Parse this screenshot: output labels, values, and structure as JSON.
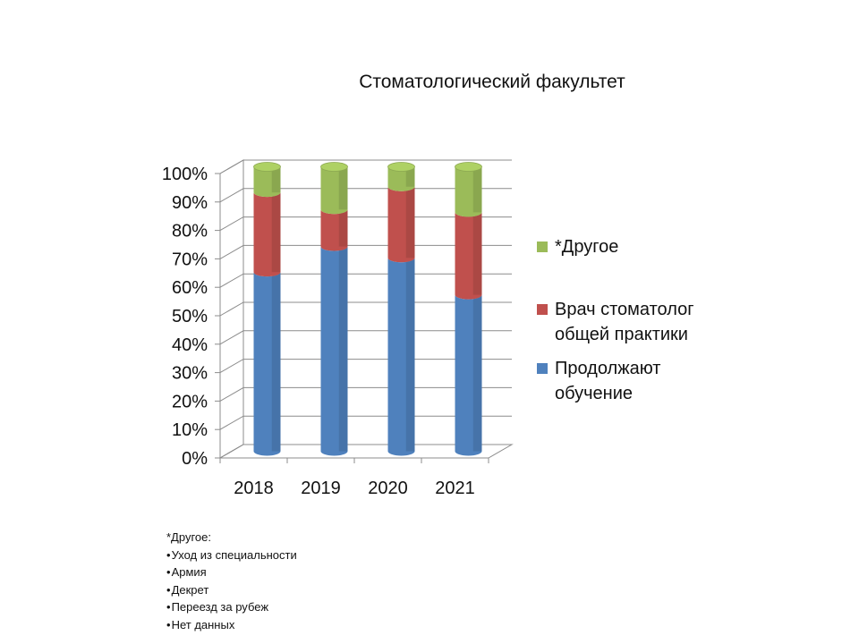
{
  "chart_data": {
    "type": "bar",
    "stacked": true,
    "percent": true,
    "title": "Стоматологический факультет",
    "categories": [
      "2018",
      "2019",
      "2020",
      "2021"
    ],
    "y_ticks": [
      "0%",
      "10%",
      "20%",
      "30%",
      "40%",
      "50%",
      "60%",
      "70%",
      "80%",
      "90%",
      "100%"
    ],
    "ylim": [
      0,
      100
    ],
    "grid": true,
    "legend_position": "right",
    "series": [
      {
        "name": "Продолжают обучение",
        "color": "#4F81BD",
        "values": [
          63,
          72,
          68,
          55
        ]
      },
      {
        "name": "Врач стоматолог общей практики",
        "color": "#C0504D",
        "values": [
          28,
          13,
          25,
          29
        ]
      },
      {
        "name": "*Другое",
        "color": "#9BBB59",
        "values": [
          9,
          15,
          7,
          16
        ]
      }
    ]
  },
  "legend": [
    {
      "label": "*Другое",
      "color": "#9BBB59"
    },
    {
      "label": "Врач стоматолог общей практики",
      "color": "#C0504D"
    },
    {
      "label": "Продолжают обучение",
      "color": "#4F81BD"
    }
  ],
  "note": {
    "title": "*Другое:",
    "items": [
      "Уход из специальности",
      "Армия",
      "Декрет",
      "Переезд за рубеж",
      "Нет данных"
    ]
  }
}
